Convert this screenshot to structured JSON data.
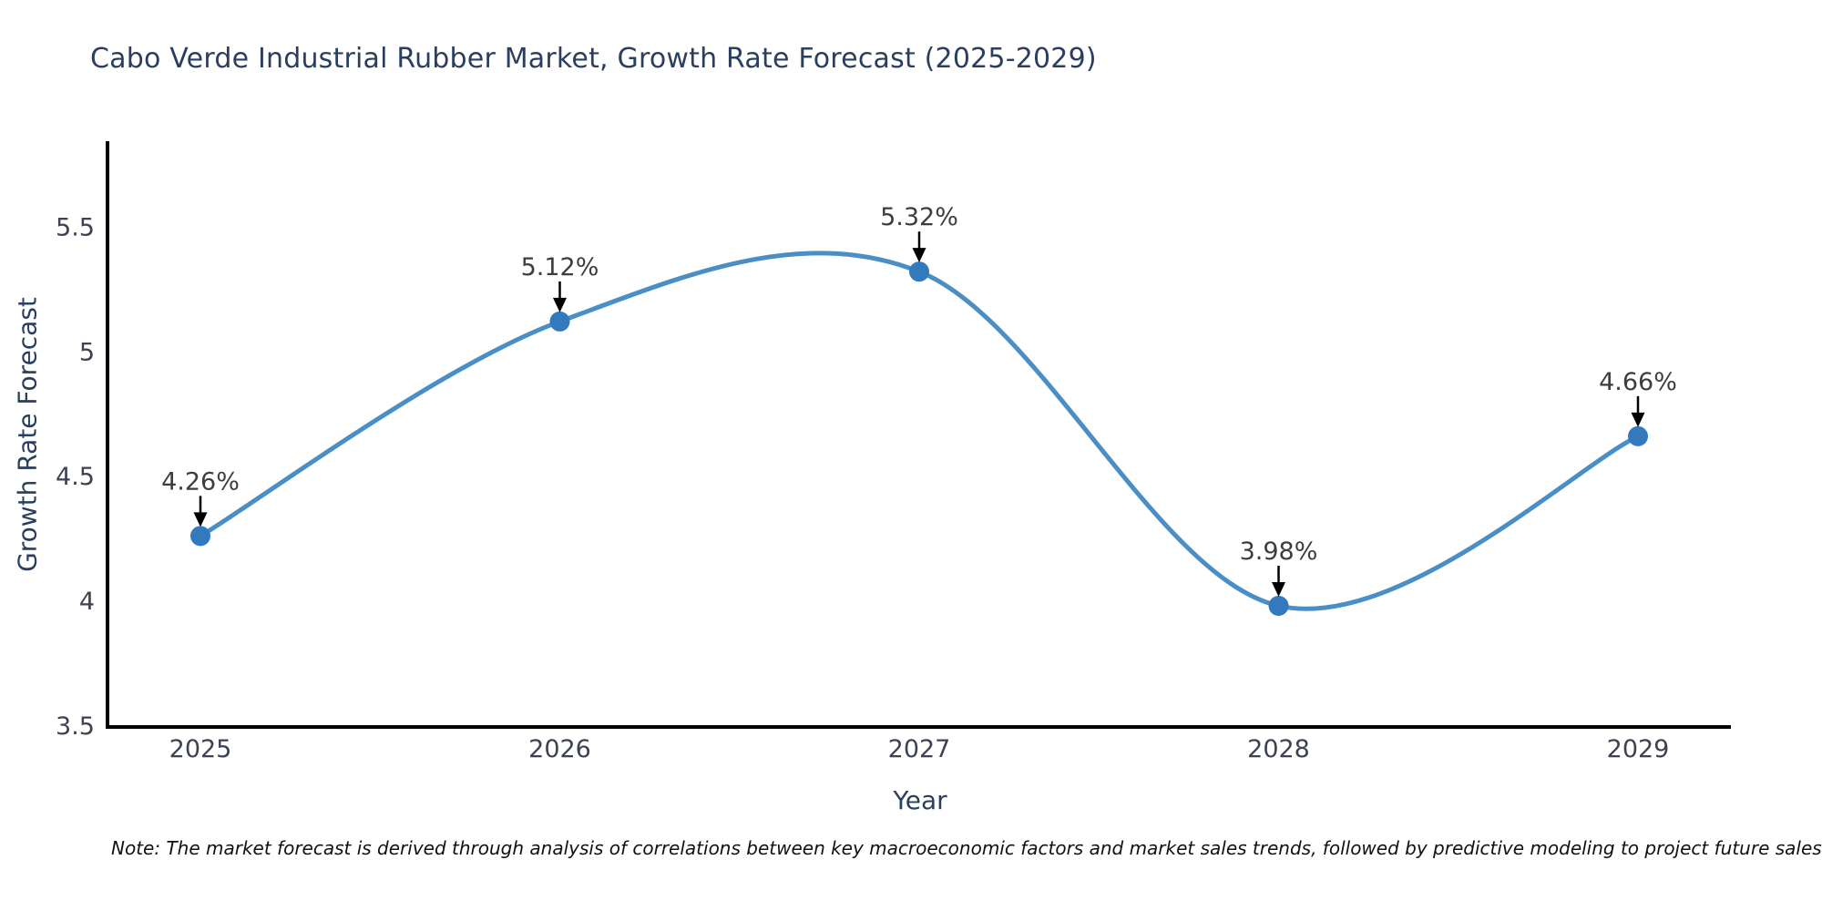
{
  "title": "Cabo Verde Industrial Rubber Market, Growth Rate Forecast (2025-2029)",
  "note": "Note: The market forecast is derived through analysis of correlations between key macroeconomic factors and market sales trends, followed by predictive modeling to project future sales",
  "chart_data": {
    "type": "line",
    "title": "Cabo Verde Industrial Rubber Market, Growth Rate Forecast (2025-2029)",
    "xlabel": "Year",
    "ylabel": "Growth Rate Forecast",
    "categories": [
      "2025",
      "2026",
      "2027",
      "2028",
      "2029"
    ],
    "x": [
      2025,
      2026,
      2027,
      2028,
      2029
    ],
    "values": [
      4.26,
      5.12,
      5.32,
      3.98,
      4.66
    ],
    "point_labels": [
      "4.26%",
      "5.12%",
      "5.32%",
      "3.98%",
      "4.66%"
    ],
    "yticks": [
      3.5,
      4,
      4.5,
      5,
      5.5
    ],
    "ytick_labels": [
      "3.5",
      "4",
      "4.5",
      "5",
      "5.5"
    ],
    "ylim": [
      3.49,
      5.85
    ],
    "grid": false,
    "legend": "none",
    "line_shape": "spline",
    "line_color": "#4a8ec6",
    "marker_color": "#3279be",
    "axis_color": "#000000",
    "tick_label_color": "#3d4152",
    "axis_title_color": "#2a3f5f",
    "annotation_text_color": "#3d3d3d",
    "annotation_arrow_color": "#000000"
  }
}
